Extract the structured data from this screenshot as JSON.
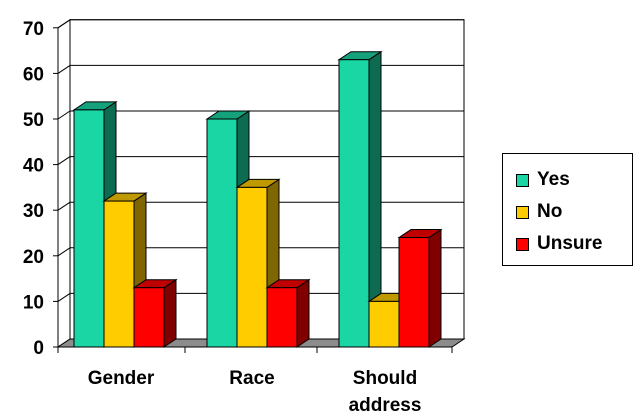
{
  "chart_data": {
    "type": "bar",
    "categories": [
      "Gender",
      "Race",
      "Should address"
    ],
    "series": [
      {
        "name": "Yes",
        "values": [
          52,
          50,
          63
        ],
        "color": "#1ad6a4"
      },
      {
        "name": "No",
        "values": [
          32,
          35,
          10
        ],
        "color": "#ffcc00"
      },
      {
        "name": "Unsure",
        "values": [
          13,
          13,
          24
        ],
        "color": "#ff0000"
      }
    ],
    "y_ticks": [
      "0",
      "10",
      "20",
      "30",
      "40",
      "50",
      "60",
      "70"
    ],
    "ylim": [
      0,
      70
    ],
    "grid": true,
    "legend": "right",
    "style": "3d-clustered-column"
  }
}
